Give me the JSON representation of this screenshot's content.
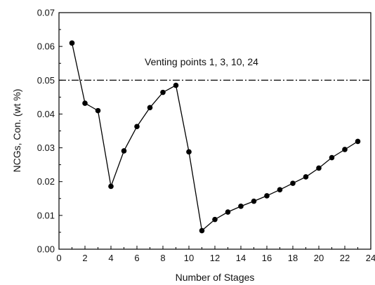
{
  "chart_data": {
    "type": "line",
    "title": "",
    "xlabel": "Number of Stages",
    "ylabel": "NCGs, Con. (wt %)",
    "xlim": [
      0,
      24
    ],
    "ylim": [
      0,
      0.07
    ],
    "xticks": [
      0,
      2,
      4,
      6,
      8,
      10,
      12,
      14,
      16,
      18,
      20,
      22,
      24
    ],
    "yticks": [
      0.0,
      0.01,
      0.02,
      0.03,
      0.04,
      0.05,
      0.06,
      0.07
    ],
    "xtick_labels": [
      "0",
      "2",
      "4",
      "6",
      "8",
      "10",
      "12",
      "14",
      "16",
      "18",
      "20",
      "22",
      "24"
    ],
    "ytick_labels": [
      "0.00",
      "0.01",
      "0.02",
      "0.03",
      "0.04",
      "0.05",
      "0.06",
      "0.07"
    ],
    "grid": false,
    "series": [
      {
        "x": [
          1,
          2,
          3,
          4,
          5,
          6,
          7,
          8,
          9,
          10,
          11,
          12,
          13,
          14,
          15,
          16,
          17,
          18,
          19,
          20,
          21,
          22,
          23
        ],
        "y": [
          0.061,
          0.0432,
          0.041,
          0.0186,
          0.0291,
          0.0363,
          0.0419,
          0.0464,
          0.0485,
          0.0288,
          0.0055,
          0.0088,
          0.011,
          0.0127,
          0.0142,
          0.0158,
          0.0176,
          0.0195,
          0.0214,
          0.024,
          0.0271,
          0.0295,
          0.0319
        ],
        "color": "#000000",
        "marker": "circle"
      }
    ],
    "reference_line": {
      "y": 0.05,
      "style": "dash-dot",
      "color": "#000000"
    },
    "annotation": "Venting points 1, 3, 10, 24"
  }
}
